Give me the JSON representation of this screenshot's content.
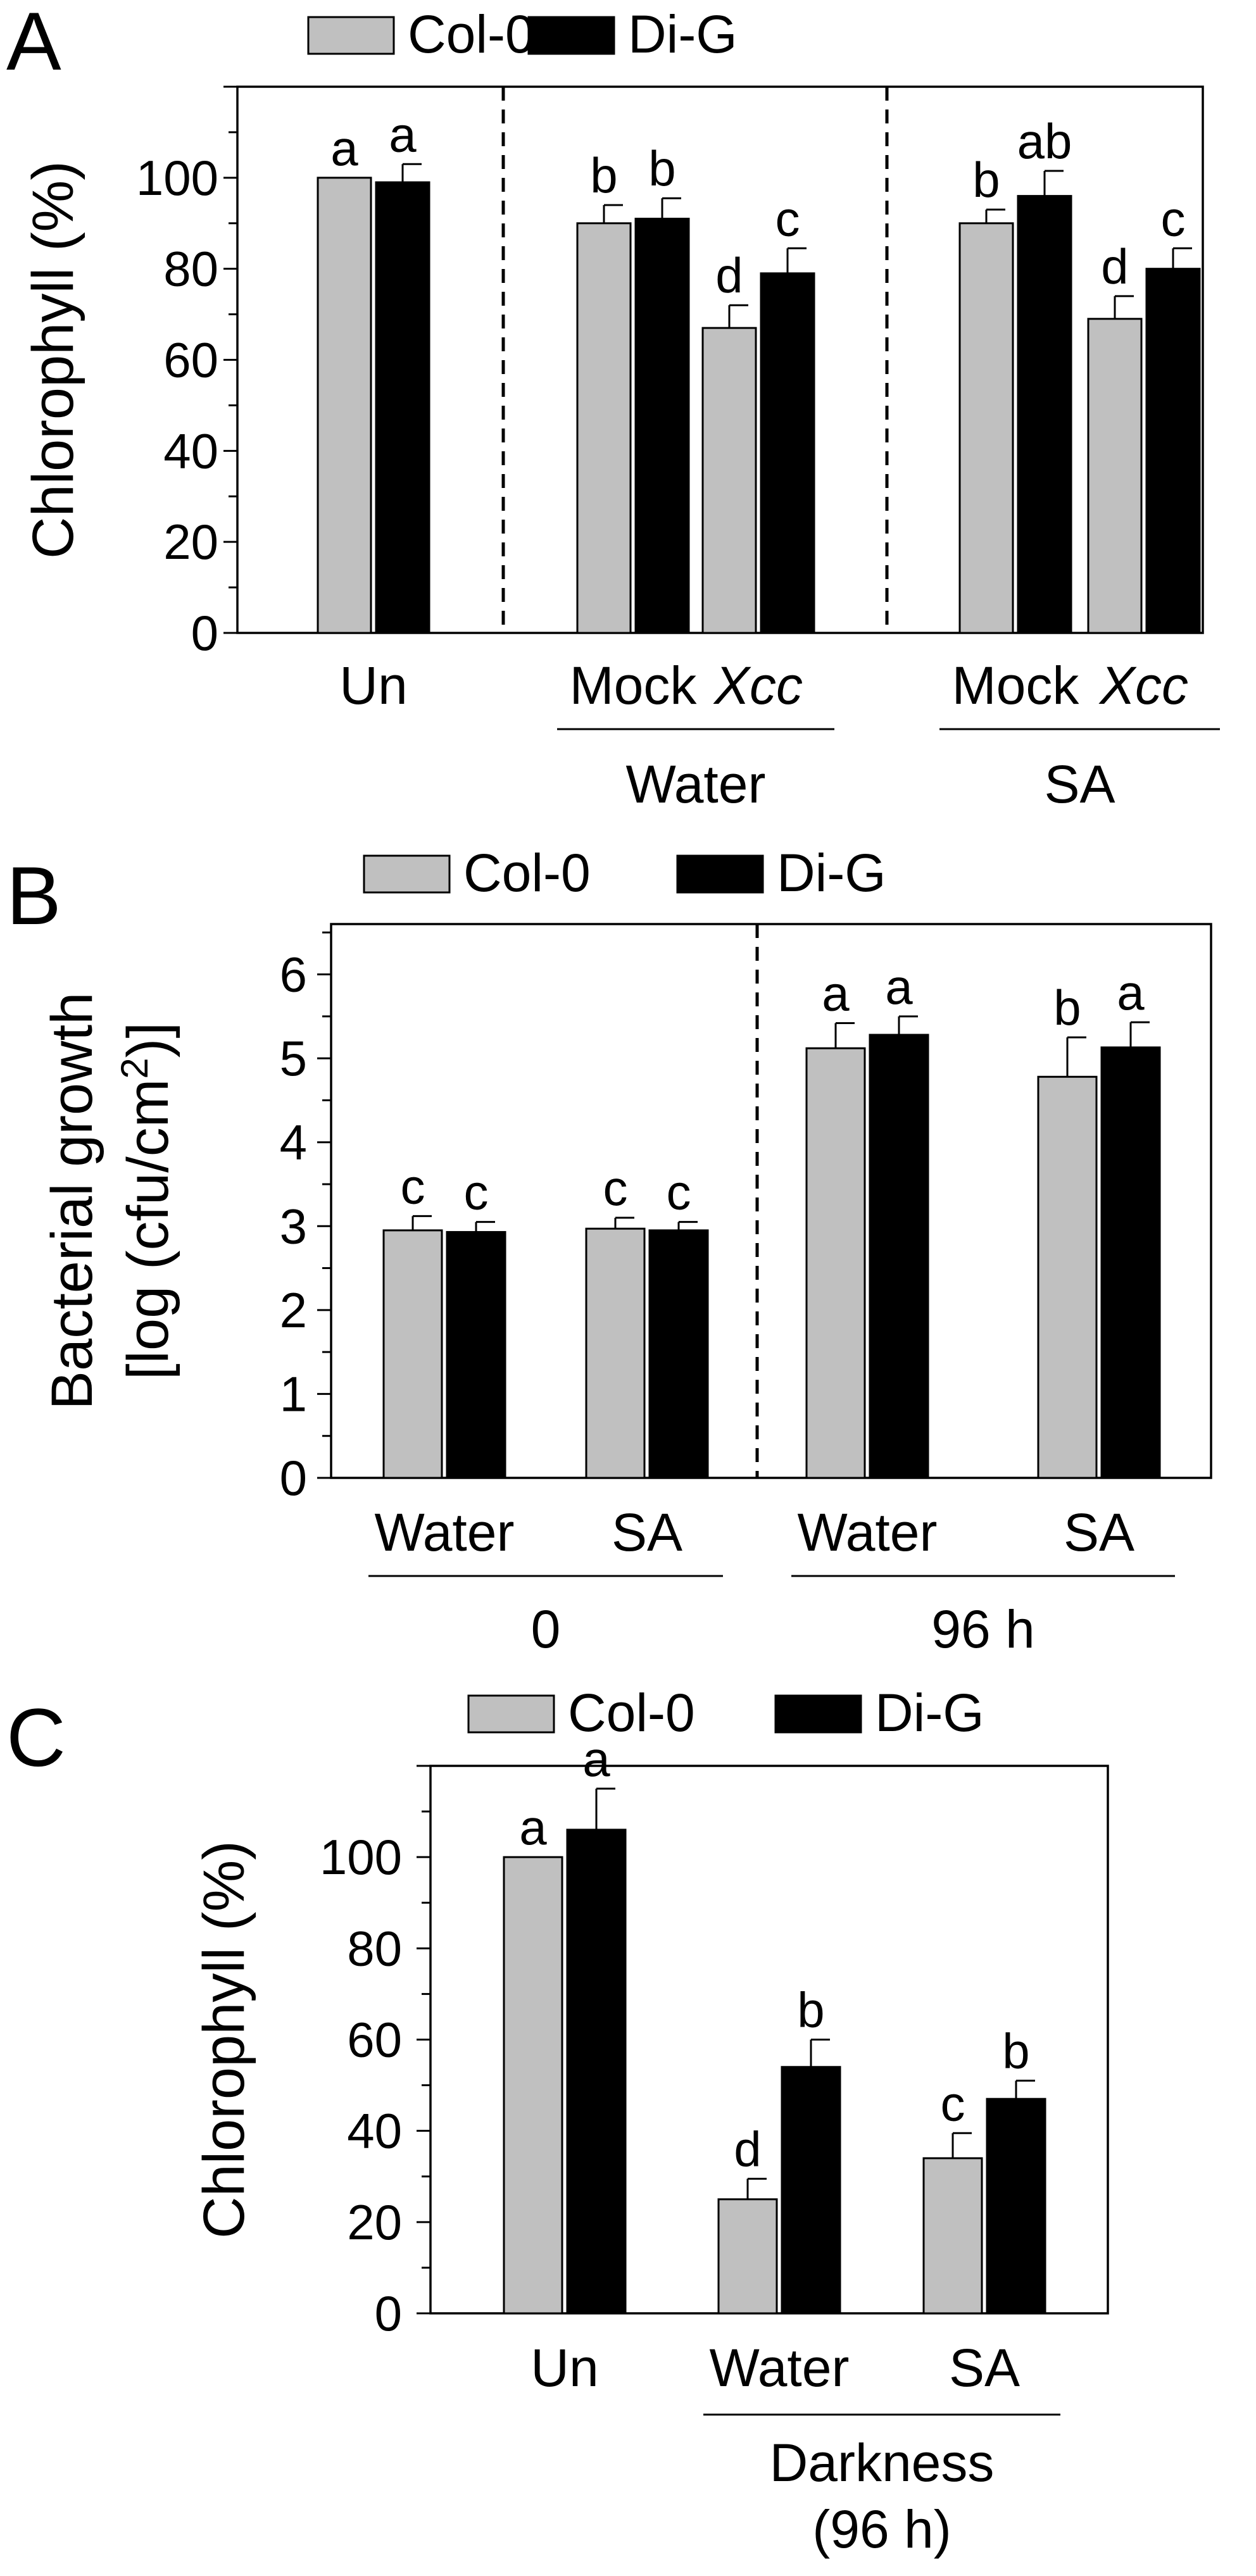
{
  "colors": {
    "col0": "#c0c0c0",
    "dig": "#000000",
    "axis": "#000000"
  },
  "chart_data": [
    {
      "panel_label": "A",
      "type": "bar",
      "ylabel": "Chlorophyll (%)",
      "ylabel_sup": "",
      "ylabel_line2": "",
      "ylim": [
        0,
        120
      ],
      "yticks": [
        "0",
        "20",
        "40",
        "60",
        "80",
        "100"
      ],
      "legend": {
        "placement": "top-center",
        "entries": [
          "Col-0",
          "Di-G"
        ]
      },
      "series": [
        {
          "name": "Col-0",
          "values": [
            100,
            90,
            67,
            90,
            69
          ],
          "errors": [
            0,
            4,
            5,
            3,
            5
          ],
          "labels": [
            "a",
            "b",
            "d",
            "b",
            "d"
          ]
        },
        {
          "name": "Di-G",
          "values": [
            99,
            91,
            79,
            96,
            80
          ],
          "errors": [
            4,
            4.5,
            5.5,
            5.5,
            4.5
          ],
          "labels": [
            "a",
            "b",
            "c",
            "ab",
            "c"
          ]
        }
      ],
      "categories": [
        "Un",
        "Mock",
        "Xcc",
        "Mock",
        "Xcc"
      ],
      "italic_categories": [
        false,
        false,
        true,
        false,
        true
      ],
      "groups": [
        {
          "label": "Water",
          "start": 1,
          "end": 2
        },
        {
          "label": "SA",
          "start": 3,
          "end": 4
        }
      ],
      "dividers_after": [
        0,
        2
      ]
    },
    {
      "panel_label": "B",
      "type": "bar",
      "ylabel": "Bacterial growth",
      "ylabel_line2": "[log  (cfu/cm",
      "ylabel_sup": "2",
      "ylabel_close": ")]",
      "ylim": [
        0,
        6.6
      ],
      "yticks": [
        "0",
        "1",
        "2",
        "3",
        "4",
        "5",
        "6"
      ],
      "legend": {
        "placement": "top-center",
        "entries": [
          "Col-0",
          "Di-G"
        ]
      },
      "series": [
        {
          "name": "Col-0",
          "values": [
            2.95,
            2.97,
            5.12,
            4.78
          ],
          "errors": [
            0.17,
            0.13,
            0.3,
            0.47
          ],
          "labels": [
            "c",
            "c",
            "a",
            "b"
          ]
        },
        {
          "name": "Di-G",
          "values": [
            2.93,
            2.95,
            5.28,
            5.13
          ],
          "errors": [
            0.12,
            0.1,
            0.22,
            0.3
          ],
          "labels": [
            "c",
            "c",
            "a",
            "a"
          ]
        }
      ],
      "categories": [
        "Water",
        "SA",
        "Water",
        "SA"
      ],
      "italic_categories": [
        false,
        false,
        false,
        false
      ],
      "groups": [
        {
          "label": "0",
          "start": 0,
          "end": 1
        },
        {
          "label": "96 h",
          "start": 2,
          "end": 3
        }
      ],
      "dividers_after": [
        1
      ]
    },
    {
      "panel_label": "C",
      "type": "bar",
      "ylabel": "Chlorophyll (%)",
      "ylabel_sup": "",
      "ylabel_line2": "",
      "ylim": [
        0,
        120
      ],
      "yticks": [
        "0",
        "20",
        "40",
        "60",
        "80",
        "100"
      ],
      "legend": {
        "placement": "top-center",
        "entries": [
          "Col-0",
          "Di-G"
        ]
      },
      "series": [
        {
          "name": "Col-0",
          "values": [
            100,
            25,
            34
          ],
          "errors": [
            0,
            4.5,
            5.5
          ],
          "labels": [
            "a",
            "d",
            "c"
          ]
        },
        {
          "name": "Di-G",
          "values": [
            106,
            54,
            47
          ],
          "errors": [
            9,
            6,
            4
          ],
          "labels": [
            "a",
            "b",
            "b"
          ]
        }
      ],
      "categories": [
        "Un",
        "Water",
        "SA"
      ],
      "italic_categories": [
        false,
        false,
        false
      ],
      "groups": [
        {
          "label": "Darkness",
          "label2": "(96 h)",
          "start": 1,
          "end": 2
        }
      ],
      "dividers_after": []
    }
  ]
}
